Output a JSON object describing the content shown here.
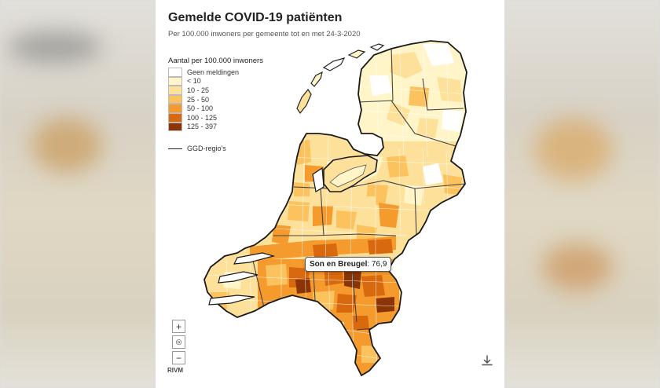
{
  "map": {
    "title": "Gemelde COVID-19 patiënten",
    "subtitle": "Per 100.000 inwoners per gemeente tot en met 24-3-2020",
    "source": "RIVM"
  },
  "legend": {
    "title": "Aantal per 100.000 inwoners",
    "items": [
      {
        "label": "Geen meldingen",
        "color": "#ffffff"
      },
      {
        "label": "< 10",
        "color": "#fff5c8"
      },
      {
        "label": "10 - 25",
        "color": "#fde19a"
      },
      {
        "label": "25 - 50",
        "color": "#fbc25d"
      },
      {
        "label": "50 - 100",
        "color": "#f59a2c"
      },
      {
        "label": "100 - 125",
        "color": "#d9690f"
      },
      {
        "label": "125 - 397",
        "color": "#8b3405"
      }
    ],
    "line_label": "GGD-regio's"
  },
  "tooltip": {
    "name": "Son en Breugel",
    "value": ": 76,9"
  },
  "controls": {
    "zoom_in": "+",
    "locate": "◎",
    "zoom_out": "−"
  },
  "icons": {
    "download": "download-icon"
  }
}
